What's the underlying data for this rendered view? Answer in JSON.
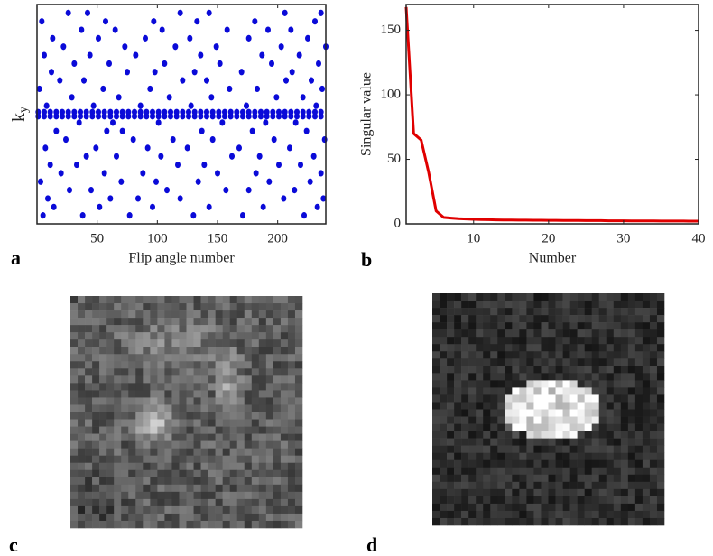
{
  "chart_data": [
    {
      "type": "scatter",
      "panel_label": "a",
      "xlabel": "Flip angle number",
      "ylabel": "k",
      "ylabel_subscript": "y",
      "color": "#0a0ad8",
      "xlim": [
        0,
        240
      ],
      "xticks": [
        50,
        100,
        150,
        200
      ],
      "ylim": [
        0,
        26
      ],
      "x": [
        5,
        38,
        77,
        130,
        171,
        222,
        14,
        52,
        96,
        143,
        188,
        233,
        9,
        61,
        84,
        119,
        205,
        238,
        27,
        45,
        108,
        157,
        176,
        214,
        3,
        70,
        99,
        134,
        193,
        227,
        20,
        56,
        88,
        150,
        182,
        236,
        11,
        33,
        117,
        139,
        201,
        219,
        41,
        66,
        103,
        162,
        185,
        230,
        7,
        49,
        92,
        125,
        168,
        210,
        24,
        80,
        113,
        146,
        197,
        239,
        16,
        58,
        71,
        137,
        179,
        224,
        35,
        63,
        101,
        154,
        190,
        215,
        8,
        47,
        86,
        128,
        174,
        232,
        29,
        68,
        110,
        145,
        199,
        221,
        2,
        55,
        94,
        160,
        183,
        237,
        19,
        39,
        121,
        141,
        207,
        228,
        12,
        75,
        98,
        131,
        170,
        212,
        31,
        60,
        106,
        152,
        195,
        234,
        6,
        44,
        82,
        136,
        187,
        218,
        22,
        73,
        115,
        149,
        203,
        240,
        13,
        51,
        90,
        127,
        176,
        225,
        37,
        65,
        104,
        158,
        192,
        211,
        4,
        57,
        97,
        133,
        181,
        231,
        26,
        42,
        119,
        143,
        206,
        236,
        1,
        6,
        11,
        16,
        21,
        26,
        31,
        36,
        41,
        46,
        51,
        56,
        61,
        66,
        71,
        76,
        81,
        86,
        91,
        96,
        101,
        106,
        111,
        116,
        121,
        126,
        131,
        136,
        141,
        146,
        151,
        156,
        161,
        166,
        171,
        176,
        181,
        186,
        191,
        196,
        201,
        206,
        211,
        216,
        221,
        226,
        231,
        236,
        1,
        6,
        11,
        16,
        21,
        26,
        31,
        36,
        41,
        46,
        51,
        56,
        61,
        66,
        71,
        76,
        81,
        86,
        91,
        96,
        101,
        106,
        111,
        116,
        121,
        126,
        131,
        136,
        141,
        146,
        151,
        156,
        161,
        166,
        171,
        176,
        181,
        186,
        191,
        196,
        201,
        206,
        211,
        216,
        221,
        226,
        231,
        236
      ],
      "y": [
        1,
        1,
        1,
        1,
        1,
        1,
        2,
        2,
        2,
        2,
        2,
        2,
        3,
        3,
        3,
        3,
        3,
        3,
        4,
        4,
        4,
        4,
        4,
        4,
        5,
        5,
        5,
        5,
        5,
        5,
        6,
        6,
        6,
        6,
        6,
        6,
        7,
        7,
        7,
        7,
        7,
        7,
        8,
        8,
        8,
        8,
        8,
        8,
        9,
        9,
        9,
        9,
        9,
        9,
        10,
        10,
        10,
        10,
        10,
        10,
        11,
        11,
        11,
        11,
        11,
        11,
        12,
        12,
        12,
        12,
        12,
        12,
        14,
        14,
        14,
        14,
        14,
        14,
        15,
        15,
        15,
        15,
        15,
        15,
        16,
        16,
        16,
        16,
        16,
        16,
        17,
        17,
        17,
        17,
        17,
        17,
        18,
        18,
        18,
        18,
        18,
        18,
        19,
        19,
        19,
        19,
        19,
        19,
        20,
        20,
        20,
        20,
        20,
        20,
        21,
        21,
        21,
        21,
        21,
        21,
        22,
        22,
        22,
        22,
        22,
        22,
        23,
        23,
        23,
        23,
        23,
        23,
        24,
        24,
        24,
        24,
        24,
        24,
        25,
        25,
        25,
        25,
        25,
        25,
        12.75,
        12.75,
        12.75,
        12.75,
        12.75,
        12.75,
        12.75,
        12.75,
        12.75,
        12.75,
        12.75,
        12.75,
        12.75,
        12.75,
        12.75,
        12.75,
        12.75,
        12.75,
        12.75,
        12.75,
        12.75,
        12.75,
        12.75,
        12.75,
        12.75,
        12.75,
        12.75,
        12.75,
        12.75,
        12.75,
        12.75,
        12.75,
        12.75,
        12.75,
        12.75,
        12.75,
        12.75,
        12.75,
        12.75,
        12.75,
        12.75,
        12.75,
        12.75,
        12.75,
        12.75,
        12.75,
        12.75,
        12.75,
        13.25,
        13.25,
        13.25,
        13.25,
        13.25,
        13.25,
        13.25,
        13.25,
        13.25,
        13.25,
        13.25,
        13.25,
        13.25,
        13.25,
        13.25,
        13.25,
        13.25,
        13.25,
        13.25,
        13.25,
        13.25,
        13.25,
        13.25,
        13.25,
        13.25,
        13.25,
        13.25,
        13.25,
        13.25,
        13.25,
        13.25,
        13.25,
        13.25,
        13.25,
        13.25,
        13.25,
        13.25,
        13.25,
        13.25,
        13.25,
        13.25,
        13.25,
        13.25,
        13.25,
        13.25,
        13.25,
        13.25,
        13.25
      ]
    },
    {
      "type": "line",
      "panel_label": "b",
      "xlabel": "Number",
      "ylabel": "Singular value",
      "color": "#e00000",
      "xlim": [
        1,
        40
      ],
      "xticks": [
        10,
        20,
        30,
        40
      ],
      "ylim": [
        0,
        170
      ],
      "yticks": [
        0,
        50,
        100,
        150
      ],
      "x": [
        1,
        2,
        3,
        4,
        5,
        6,
        7,
        8,
        9,
        10,
        11,
        12,
        13,
        14,
        15,
        16,
        17,
        18,
        19,
        20,
        21,
        22,
        23,
        24,
        25,
        26,
        27,
        28,
        29,
        30,
        31,
        32,
        33,
        34,
        35,
        36,
        37,
        38,
        39,
        40
      ],
      "y": [
        168,
        70,
        65,
        40,
        10,
        5,
        4.5,
        4,
        3.8,
        3.5,
        3.3,
        3.2,
        3.1,
        3,
        3,
        2.9,
        2.9,
        2.8,
        2.8,
        2.7,
        2.7,
        2.6,
        2.6,
        2.6,
        2.5,
        2.5,
        2.5,
        2.4,
        2.4,
        2.4,
        2.3,
        2.3,
        2.3,
        2.3,
        2.2,
        2.2,
        2.2,
        2.2,
        2.1,
        2.1
      ]
    }
  ],
  "images": [
    {
      "panel_label": "c"
    },
    {
      "panel_label": "d"
    }
  ]
}
